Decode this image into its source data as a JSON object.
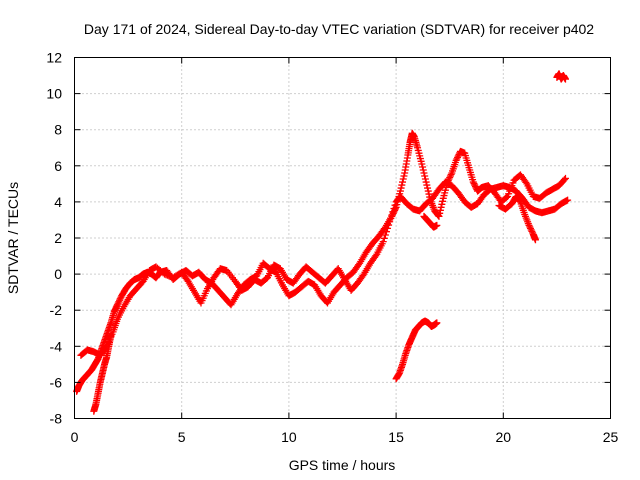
{
  "chart_data": {
    "type": "scatter",
    "title": "Day 171 of 2024, Sidereal Day-to-day VTEC variation (SDTVAR) for receiver p402",
    "xlabel": "GPS time / hours",
    "ylabel": "SDTVAR / TECUs",
    "xlim": [
      0,
      25
    ],
    "ylim": [
      -8,
      12
    ],
    "xticks": [
      0,
      5,
      10,
      15,
      20,
      25
    ],
    "yticks": [
      -8,
      -6,
      -4,
      -2,
      0,
      2,
      4,
      6,
      8,
      10,
      12
    ],
    "grid": true,
    "marker": "plus",
    "color": "#ff0000",
    "series": [
      {
        "name": "main-trace-1",
        "points": [
          [
            0.1,
            -6.5
          ],
          [
            0.2,
            -6.2
          ],
          [
            0.35,
            -5.9
          ],
          [
            0.5,
            -5.7
          ],
          [
            0.65,
            -5.5
          ],
          [
            0.8,
            -5.3
          ],
          [
            0.95,
            -5.0
          ],
          [
            1.1,
            -4.7
          ],
          [
            1.25,
            -4.2
          ],
          [
            1.4,
            -3.7
          ],
          [
            1.55,
            -3.2
          ],
          [
            1.7,
            -2.7
          ],
          [
            1.85,
            -2.1
          ],
          [
            2.0,
            -1.7
          ],
          [
            2.2,
            -1.2
          ],
          [
            2.4,
            -0.8
          ],
          [
            2.6,
            -0.5
          ],
          [
            2.8,
            -0.3
          ],
          [
            3.0,
            -0.2
          ],
          [
            3.2,
            0.0
          ],
          [
            3.4,
            0.1
          ],
          [
            3.6,
            0.0
          ],
          [
            3.8,
            -0.2
          ],
          [
            4.0,
            0.1
          ],
          [
            4.3,
            0.2
          ],
          [
            4.6,
            -0.3
          ],
          [
            4.9,
            0.0
          ],
          [
            5.2,
            0.2
          ],
          [
            5.5,
            -0.1
          ],
          [
            5.8,
            0.1
          ],
          [
            6.1,
            -0.3
          ],
          [
            6.4,
            -0.5
          ],
          [
            6.7,
            -0.9
          ],
          [
            7.0,
            -1.3
          ],
          [
            7.3,
            -1.7
          ],
          [
            7.6,
            -1.1
          ],
          [
            7.9,
            -0.6
          ],
          [
            8.2,
            -0.3
          ],
          [
            8.5,
            -0.1
          ],
          [
            8.8,
            0.6
          ],
          [
            9.1,
            0.3
          ],
          [
            9.4,
            0.1
          ],
          [
            9.7,
            -0.6
          ],
          [
            10.0,
            -1.2
          ],
          [
            10.3,
            -1.0
          ],
          [
            10.6,
            -0.7
          ],
          [
            10.9,
            -0.4
          ],
          [
            11.2,
            -0.6
          ],
          [
            11.5,
            -1.2
          ],
          [
            11.8,
            -1.6
          ],
          [
            12.1,
            -1.0
          ],
          [
            12.4,
            -0.6
          ],
          [
            12.7,
            -0.2
          ],
          [
            13.0,
            0.1
          ],
          [
            13.3,
            0.6
          ],
          [
            13.6,
            1.2
          ],
          [
            13.9,
            1.7
          ],
          [
            14.2,
            2.1
          ],
          [
            14.5,
            2.6
          ],
          [
            14.8,
            3.2
          ],
          [
            15.0,
            3.7
          ],
          [
            15.2,
            4.6
          ],
          [
            15.4,
            5.6
          ],
          [
            15.55,
            6.6
          ],
          [
            15.65,
            7.3
          ],
          [
            15.75,
            7.8
          ],
          [
            15.85,
            7.6
          ],
          [
            16.0,
            7.0
          ],
          [
            16.2,
            6.1
          ],
          [
            16.4,
            5.1
          ],
          [
            16.6,
            4.1
          ],
          [
            16.8,
            3.5
          ],
          [
            17.0,
            3.2
          ],
          [
            17.2,
            4.2
          ],
          [
            17.4,
            5.1
          ],
          [
            17.6,
            5.6
          ],
          [
            17.8,
            6.3
          ],
          [
            18.0,
            6.8
          ],
          [
            18.2,
            6.7
          ],
          [
            18.4,
            5.9
          ],
          [
            18.6,
            5.1
          ],
          [
            18.8,
            4.6
          ],
          [
            19.0,
            4.8
          ],
          [
            19.3,
            4.9
          ],
          [
            19.6,
            4.5
          ],
          [
            19.9,
            4.0
          ],
          [
            20.2,
            4.3
          ],
          [
            20.5,
            5.2
          ],
          [
            20.8,
            5.5
          ],
          [
            21.1,
            5.0
          ],
          [
            21.4,
            4.3
          ],
          [
            21.7,
            4.2
          ],
          [
            22.0,
            4.5
          ],
          [
            22.3,
            4.7
          ],
          [
            22.6,
            4.9
          ],
          [
            22.9,
            5.3
          ]
        ]
      },
      {
        "name": "main-trace-2",
        "points": [
          [
            0.3,
            -4.5
          ],
          [
            0.6,
            -4.2
          ],
          [
            0.9,
            -4.3
          ],
          [
            1.2,
            -4.5
          ],
          [
            1.5,
            -4.0
          ],
          [
            1.8,
            -3.2
          ],
          [
            2.0,
            -2.5
          ],
          [
            2.3,
            -1.8
          ],
          [
            2.6,
            -1.2
          ],
          [
            2.9,
            -0.8
          ],
          [
            3.2,
            -0.4
          ],
          [
            3.5,
            0.2
          ],
          [
            3.8,
            0.4
          ],
          [
            4.2,
            0.0
          ],
          [
            4.6,
            -0.2
          ],
          [
            5.0,
            0.1
          ],
          [
            5.3,
            -0.4
          ],
          [
            5.6,
            -1.0
          ],
          [
            5.9,
            -1.6
          ],
          [
            6.2,
            -0.8
          ],
          [
            6.5,
            -0.2
          ],
          [
            6.8,
            0.3
          ],
          [
            7.1,
            0.2
          ],
          [
            7.5,
            -0.4
          ],
          [
            7.8,
            -0.9
          ],
          [
            8.1,
            -0.7
          ],
          [
            8.4,
            -0.3
          ],
          [
            8.7,
            -0.5
          ],
          [
            9.0,
            -0.2
          ],
          [
            9.3,
            0.5
          ],
          [
            9.6,
            0.3
          ],
          [
            9.9,
            -0.3
          ],
          [
            10.2,
            -0.5
          ],
          [
            10.5,
            0.0
          ],
          [
            10.8,
            0.4
          ],
          [
            11.1,
            0.1
          ],
          [
            11.4,
            -0.2
          ],
          [
            11.7,
            -0.5
          ],
          [
            12.0,
            -0.1
          ],
          [
            12.3,
            0.3
          ],
          [
            12.6,
            -0.3
          ],
          [
            12.9,
            -0.9
          ],
          [
            13.2,
            -0.5
          ],
          [
            13.5,
            0.0
          ],
          [
            13.8,
            0.6
          ],
          [
            14.1,
            1.1
          ],
          [
            14.4,
            1.8
          ],
          [
            14.7,
            2.9
          ],
          [
            15.0,
            4.0
          ],
          [
            15.2,
            4.3
          ],
          [
            15.5,
            3.9
          ],
          [
            15.8,
            3.6
          ],
          [
            16.1,
            3.5
          ],
          [
            16.4,
            3.9
          ],
          [
            16.7,
            4.2
          ],
          [
            17.0,
            4.7
          ],
          [
            17.3,
            5.1
          ],
          [
            17.6,
            4.9
          ],
          [
            17.9,
            4.5
          ],
          [
            18.2,
            4.0
          ],
          [
            18.5,
            3.7
          ],
          [
            18.8,
            3.9
          ],
          [
            19.1,
            4.4
          ],
          [
            19.4,
            4.7
          ],
          [
            19.7,
            4.8
          ],
          [
            20.0,
            4.9
          ],
          [
            20.3,
            4.8
          ],
          [
            20.6,
            4.6
          ],
          [
            20.9,
            4.2
          ],
          [
            21.2,
            3.7
          ],
          [
            21.5,
            3.5
          ],
          [
            21.8,
            3.4
          ],
          [
            22.1,
            3.5
          ],
          [
            22.4,
            3.6
          ],
          [
            22.7,
            3.9
          ],
          [
            23.0,
            4.1
          ]
        ]
      },
      {
        "name": "early-dip",
        "points": [
          [
            0.9,
            -7.6
          ],
          [
            1.0,
            -7.2
          ],
          [
            1.1,
            -6.6
          ],
          [
            1.2,
            -6.0
          ],
          [
            1.3,
            -5.5
          ],
          [
            1.4,
            -5.0
          ],
          [
            1.5,
            -4.6
          ],
          [
            1.6,
            -4.0
          ],
          [
            1.7,
            -3.4
          ]
        ]
      },
      {
        "name": "late-drop",
        "points": [
          [
            19.8,
            3.8
          ],
          [
            20.1,
            3.6
          ],
          [
            20.4,
            3.9
          ],
          [
            20.6,
            4.3
          ],
          [
            20.8,
            4.0
          ],
          [
            21.0,
            3.3
          ],
          [
            21.2,
            2.7
          ],
          [
            21.4,
            2.2
          ],
          [
            21.5,
            1.9
          ]
        ]
      },
      {
        "name": "short-segment",
        "points": [
          [
            16.3,
            3.2
          ],
          [
            16.45,
            3.0
          ],
          [
            16.6,
            2.8
          ],
          [
            16.75,
            2.6
          ],
          [
            16.9,
            2.7
          ]
        ]
      },
      {
        "name": "lower-arc",
        "points": [
          [
            15.0,
            -5.8
          ],
          [
            15.15,
            -5.5
          ],
          [
            15.3,
            -5.0
          ],
          [
            15.45,
            -4.4
          ],
          [
            15.6,
            -3.9
          ],
          [
            15.75,
            -3.5
          ],
          [
            15.9,
            -3.1
          ],
          [
            16.05,
            -2.9
          ],
          [
            16.2,
            -2.7
          ],
          [
            16.35,
            -2.6
          ],
          [
            16.5,
            -2.7
          ],
          [
            16.65,
            -2.9
          ],
          [
            16.8,
            -2.8
          ],
          [
            16.9,
            -2.7
          ]
        ]
      },
      {
        "name": "outlier-cluster",
        "points": [
          [
            22.5,
            10.9
          ],
          [
            22.6,
            11.1
          ],
          [
            22.7,
            10.8
          ],
          [
            22.8,
            11.0
          ],
          [
            22.9,
            10.8
          ]
        ]
      }
    ]
  }
}
